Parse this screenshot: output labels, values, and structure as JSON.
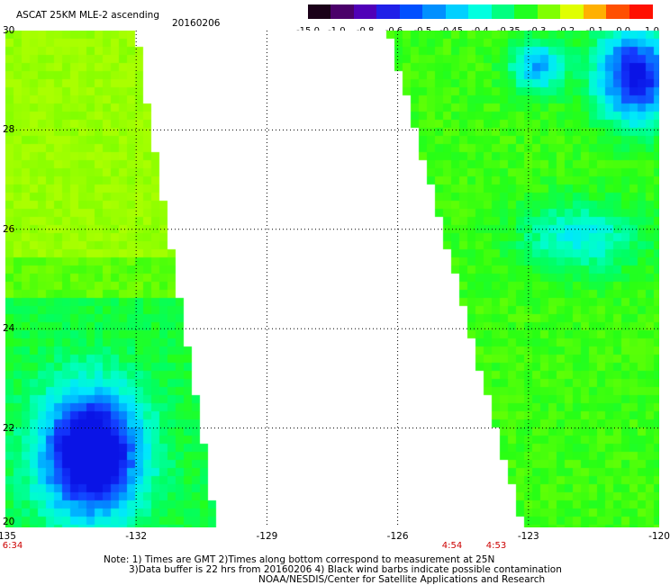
{
  "header": {
    "title": "ASCAT 25KM MLE-2 ascending",
    "date": "20160206"
  },
  "colorbar": {
    "labels": [
      "-15.0",
      "-1.0",
      "-0.8",
      "-0.6",
      "-0.5",
      "-0.45",
      "-0.4",
      "-0.35",
      "-0.3",
      "-0.2",
      "-0.1",
      "0.0",
      "1.0"
    ],
    "colors": [
      "#1a0018",
      "#4a006a",
      "#5000b8",
      "#2020e8",
      "#0050ff",
      "#0090ff",
      "#00d0ff",
      "#00ffe0",
      "#00ff80",
      "#20ff20",
      "#80ff00",
      "#e0ff00",
      "#ffb000",
      "#ff5000",
      "#ff1000"
    ]
  },
  "axes": {
    "x_ticks": [
      "-135",
      "-132",
      "-129",
      "-126",
      "-123",
      "-120"
    ],
    "y_ticks": [
      "30",
      "28",
      "26",
      "24",
      "22",
      "20"
    ],
    "lon_range": [
      -135,
      -120
    ],
    "lat_range": [
      20,
      30
    ]
  },
  "times": {
    "left": "6:34",
    "mid1": "4:54",
    "mid2": "4:53"
  },
  "notes": {
    "line1": "Note: 1) Times are GMT 2)Times along bottom correspond to measurement at 25N",
    "line2": "3)Data buffer is 22 hrs from 20160206 4) Black wind barbs indicate possible contamination",
    "line3": "NOAA/NESDIS/Center for Satellite Applications and Research"
  }
}
